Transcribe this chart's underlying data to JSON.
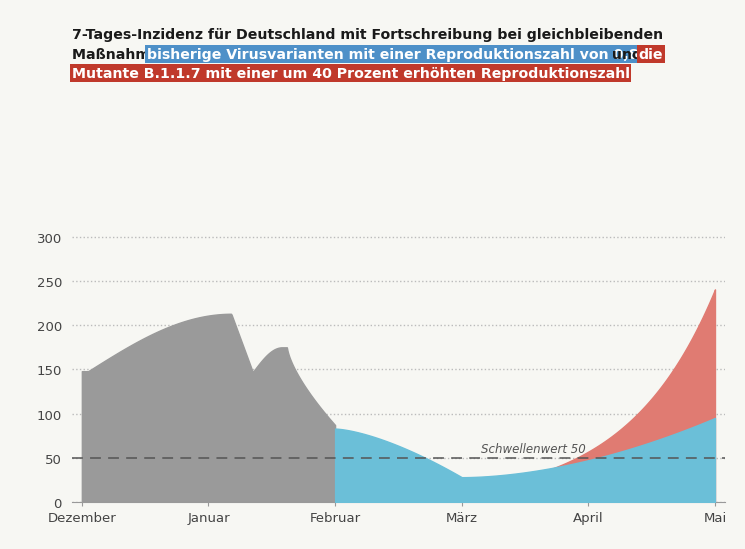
{
  "title_line1": "7-Tages-Inzidenz für Deutschland mit Fortschreibung bei gleichbleibenden",
  "title_line2_plain": "Maßnahmen: ",
  "title_line2_blue_text": "bisherige Virusvarianten mit einer Reproduktionszahl von 0,87",
  "title_line2_mid": " und ",
  "title_line2_red_word": "die",
  "title_line3_red_text": "Mutante B.1.1.7 mit einer um 40 Prozent erhöhten Reproduktionszahl",
  "background_color": "#f7f7f3",
  "gray_color": "#9a9a9a",
  "blue_color": "#6bbfd8",
  "red_color": "#e07b72",
  "threshold_color": "#555555",
  "threshold_value": 50,
  "threshold_label": "Schwellenwert 50",
  "x_labels": [
    "Dezember",
    "Januar",
    "Februar",
    "März",
    "April",
    "Mai"
  ],
  "y_ticks": [
    0,
    50,
    100,
    150,
    200,
    250,
    300
  ],
  "ylim": [
    0,
    330
  ],
  "blue_highlight_color": "#4e90c8",
  "red_highlight_color": "#c0392b"
}
